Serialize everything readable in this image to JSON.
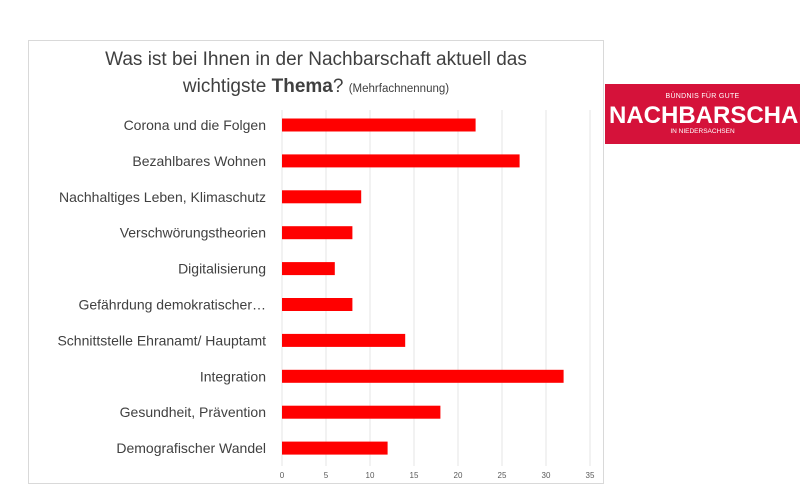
{
  "chart_data": {
    "type": "bar",
    "orientation": "horizontal",
    "title_line1": "Was ist bei Ihnen in der Nachbarschaft aktuell das",
    "title_line2_prefix": "wichtigste ",
    "title_line2_bold": "Thema",
    "title_line2_suffix": "?",
    "title_note": "(Mehrfachnennung)",
    "categories": [
      "Corona und die Folgen",
      "Bezahlbares Wohnen",
      "Nachhaltiges Leben, Klimaschutz",
      "Verschwörungstheorien",
      "Digitalisierung",
      "Gefährdung demokratischer…",
      "Schnittstelle Ehranamt/ Hauptamt",
      "Integration",
      "Gesundheit, Prävention",
      "Demografischer Wandel"
    ],
    "values": [
      22,
      27,
      9,
      8,
      6,
      8,
      14,
      32,
      18,
      12
    ],
    "xlim": [
      0,
      35
    ],
    "x_ticks": [
      0,
      5,
      10,
      15,
      20,
      25,
      30,
      35
    ],
    "grid": true,
    "bar_color": "#ff0000",
    "grid_color": "#e6e6e6"
  },
  "logo": {
    "line1": "BÜNDNIS FÜR GUTE",
    "line2": "NACHBARSCHAFT",
    "line3": "IN NIEDERSACHSEN",
    "color": "#d5123a"
  }
}
